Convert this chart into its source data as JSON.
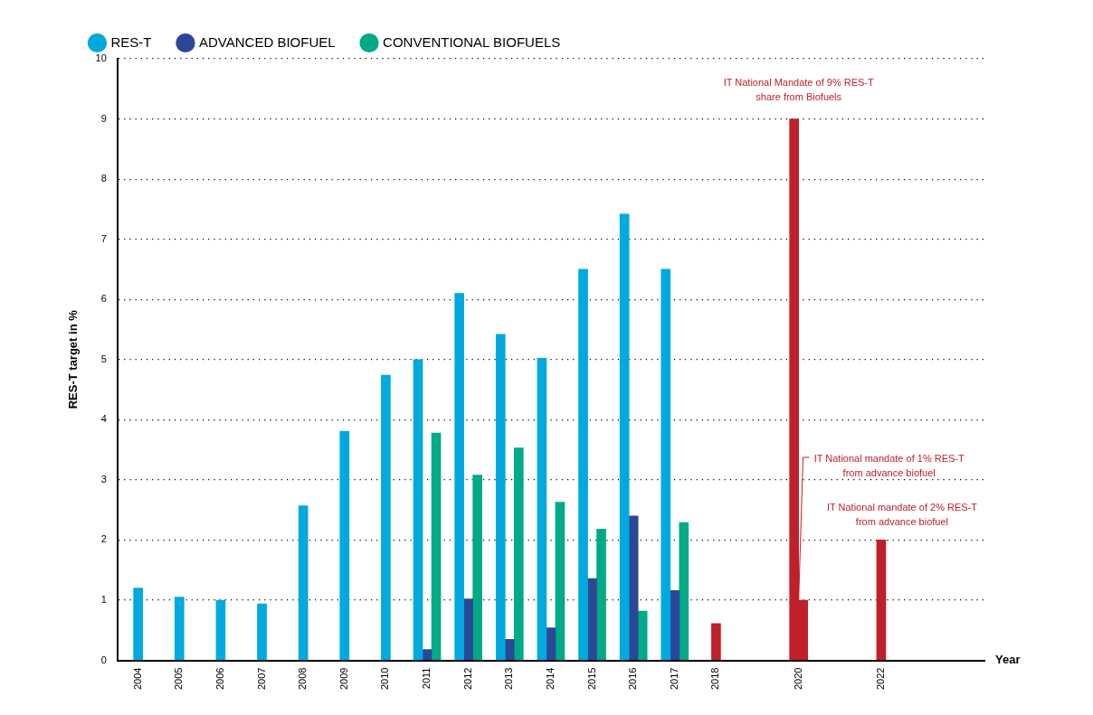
{
  "chart_data": {
    "type": "bar",
    "ylabel": "RES-T target in %",
    "xlabel": "Year",
    "categories": [
      "2004",
      "2005",
      "2006",
      "2007",
      "2008",
      "2009",
      "2010",
      "2011",
      "2012",
      "2013",
      "2014",
      "2015",
      "2016",
      "2017",
      "2018",
      null,
      "2020",
      null,
      "2022",
      null,
      null
    ],
    "series": [
      {
        "name": "RES-T",
        "color": "#00a9de",
        "values": [
          1.2,
          1.05,
          1.0,
          0.94,
          2.57,
          3.81,
          4.74,
          5.0,
          6.1,
          5.42,
          5.02,
          6.5,
          7.42,
          6.5,
          null,
          null,
          null,
          null,
          null,
          null,
          null
        ]
      },
      {
        "name": "ADVANCED BIOFUEL",
        "color": "#2b4896",
        "values": [
          null,
          null,
          null,
          null,
          null,
          null,
          null,
          0.18,
          1.02,
          0.35,
          0.54,
          1.36,
          2.4,
          1.16,
          null,
          null,
          null,
          null,
          null,
          null,
          null
        ]
      },
      {
        "name": "CONVENTIONAL BIOFUELS",
        "color": "#00aa88",
        "values": [
          null,
          null,
          null,
          null,
          null,
          null,
          null,
          3.78,
          3.08,
          3.53,
          2.63,
          2.18,
          0.82,
          2.29,
          null,
          null,
          null,
          null,
          null,
          null,
          null
        ]
      },
      {
        "color": "#c0202a",
        "values": [
          null,
          null,
          null,
          null,
          null,
          null,
          null,
          null,
          null,
          null,
          null,
          null,
          null,
          null,
          0.61,
          null,
          9,
          null,
          2,
          null,
          null
        ]
      },
      {
        "color": "#c0202a",
        "values": [
          null,
          null,
          null,
          null,
          null,
          null,
          null,
          null,
          null,
          null,
          null,
          null,
          null,
          null,
          null,
          null,
          1,
          null,
          null,
          null,
          null
        ]
      }
    ],
    "ylim": [
      0,
      10
    ],
    "yticks": [
      0,
      1,
      2,
      3,
      4,
      5,
      6,
      7,
      8,
      9,
      10
    ],
    "grid": "y",
    "legend": "top left",
    "annotations": [
      {
        "text": "IT National Mandate of 9% RES-T share from Biofuels",
        "x": "2020",
        "y": 9
      },
      {
        "text": "IT National mandate of 1% RES-T from advance biofuel",
        "x": "2020",
        "y": 1
      },
      {
        "text": "IT National mandate of 2% RES-T from advance biofuel",
        "x": "2022",
        "y": 2
      }
    ]
  }
}
